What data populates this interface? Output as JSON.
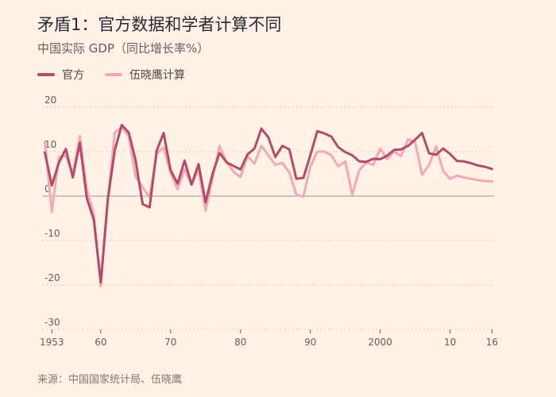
{
  "header": {
    "title": "矛盾1：官方数据和学者计算不同",
    "subtitle": "中国实际 GDP（同比增长率%）"
  },
  "legend": {
    "items": [
      {
        "label": "官方",
        "color": "#b04d6b"
      },
      {
        "label": "伍晓鹰计算",
        "color": "#f0a9b6"
      }
    ]
  },
  "footer": {
    "source": "来源：中国国家统计局、伍晓鹰"
  },
  "chart_data": {
    "type": "line",
    "title": "矛盾1：官方数据和学者计算不同",
    "subtitle": "中国实际 GDP（同比增长率%）",
    "xlabel": "",
    "ylabel": "",
    "xlim": [
      1953,
      2016
    ],
    "ylim": [
      -30,
      20
    ],
    "y_ticks": [
      20,
      10,
      0,
      -10,
      -20,
      -30
    ],
    "y_tick_labels": [
      "20",
      "10",
      "0",
      "-10",
      "-20",
      "-30"
    ],
    "x_ticks": [
      1953,
      1960,
      1970,
      1980,
      1990,
      2000,
      2010,
      2016
    ],
    "x_tick_labels": [
      "1953",
      "60",
      "70",
      "80",
      "90",
      "2000",
      "10",
      "16"
    ],
    "grid": true,
    "legend_position": "top-left",
    "series": [
      {
        "name": "官方",
        "color": "#b04d6b",
        "x": [
          1952,
          1953,
          1954,
          1955,
          1956,
          1957,
          1958,
          1959,
          1960,
          1961,
          1962,
          1963,
          1964,
          1965,
          1966,
          1967,
          1968,
          1969,
          1970,
          1971,
          1972,
          1973,
          1974,
          1975,
          1976,
          1977,
          1978,
          1979,
          1980,
          1981,
          1982,
          1983,
          1984,
          1985,
          1986,
          1987,
          1988,
          1989,
          1990,
          1991,
          1992,
          1993,
          1994,
          1995,
          1996,
          1997,
          1998,
          1999,
          2000,
          2001,
          2002,
          2003,
          2004,
          2005,
          2006,
          2007,
          2008,
          2009,
          2010,
          2011,
          2012,
          2013,
          2014,
          2015,
          2016
        ],
        "values": [
          9.8,
          2.4,
          7.5,
          10.6,
          4.2,
          12.0,
          -0.5,
          -5.3,
          -19.4,
          -0.8,
          10.3,
          16.0,
          14.3,
          8.0,
          -1.8,
          -2.5,
          10.2,
          14.2,
          5.8,
          2.8,
          8.0,
          2.6,
          7.2,
          -1.4,
          5.0,
          9.7,
          7.6,
          6.8,
          6.0,
          9.4,
          10.7,
          15.2,
          13.2,
          8.8,
          11.3,
          10.5,
          3.9,
          4.1,
          9.2,
          14.6,
          14.1,
          13.4,
          11.0,
          9.9,
          9.2,
          7.8,
          7.7,
          8.4,
          8.3,
          9.1,
          10.4,
          10.5,
          11.3,
          12.7,
          14.2,
          9.6,
          9.3,
          10.7,
          9.5,
          7.9,
          7.8,
          7.4,
          6.9,
          6.6,
          6.1
        ]
      },
      {
        "name": "伍晓鹰计算",
        "color": "#f0a9b6",
        "x": [
          1952,
          1953,
          1954,
          1955,
          1956,
          1957,
          1958,
          1959,
          1960,
          1961,
          1962,
          1963,
          1964,
          1965,
          1966,
          1967,
          1968,
          1969,
          1970,
          1971,
          1972,
          1973,
          1974,
          1975,
          1976,
          1977,
          1978,
          1979,
          1980,
          1981,
          1982,
          1983,
          1984,
          1985,
          1986,
          1987,
          1988,
          1989,
          1990,
          1991,
          1992,
          1993,
          1994,
          1995,
          1996,
          1997,
          1998,
          1999,
          2000,
          2001,
          2002,
          2003,
          2004,
          2005,
          2006,
          2007,
          2008,
          2009,
          2010,
          2011,
          2012,
          2013,
          2014,
          2015,
          2016
        ],
        "values": [
          12.2,
          -3.5,
          8.8,
          9.1,
          5.0,
          13.5,
          1.5,
          -4.1,
          -20.3,
          -1.0,
          14.3,
          15.5,
          13.5,
          4.4,
          2.0,
          -0.3,
          9.5,
          11.0,
          5.2,
          1.5,
          6.0,
          2.5,
          6.0,
          -3.3,
          4.0,
          11.3,
          7.7,
          5.5,
          4.3,
          9.0,
          7.3,
          11.3,
          9.2,
          7.0,
          7.5,
          5.3,
          0.3,
          -0.1,
          6.6,
          10.0,
          10.0,
          9.2,
          6.7,
          7.8,
          0.3,
          5.8,
          7.6,
          7.0,
          10.7,
          8.3,
          10.0,
          9.0,
          12.8,
          12.1,
          4.8,
          7.0,
          11.2,
          5.7,
          3.9,
          4.6,
          4.2,
          3.9,
          3.6,
          3.4,
          3.3
        ]
      }
    ]
  }
}
